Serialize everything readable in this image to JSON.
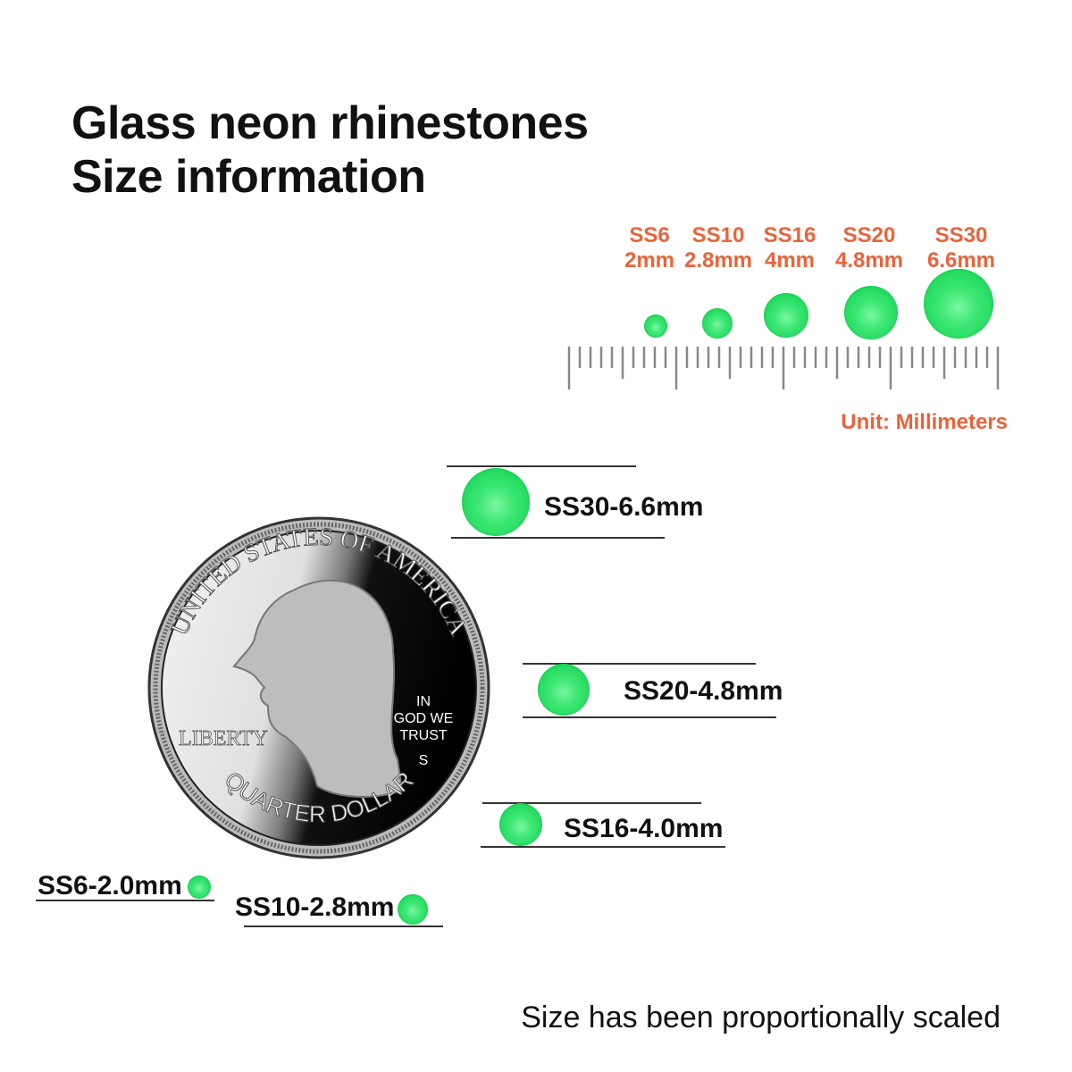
{
  "title": {
    "line1": "Glass neon rhinestones",
    "line2": "Size information"
  },
  "size_chart": {
    "items": [
      {
        "code": "SS6",
        "size": "2mm"
      },
      {
        "code": "SS10",
        "size": "2.8mm"
      },
      {
        "code": "SS16",
        "size": "4mm"
      },
      {
        "code": "SS20",
        "size": "4.8mm"
      },
      {
        "code": "SS30",
        "size": "6.6mm"
      }
    ],
    "unit": "Unit: Millimeters",
    "ruler_mm": 40
  },
  "comparison": {
    "labels": {
      "ss30": "SS30-6.6mm",
      "ss20": "SS20-4.8mm",
      "ss16": "SS16-4.0mm",
      "ss6": "SS6-2.0mm",
      "ss10": "SS10-2.8mm"
    },
    "coin": {
      "top": "UNITED STATES OF AMERICA",
      "motto": [
        "IN",
        "GOD WE",
        "TRUST"
      ],
      "left": "LIBERTY",
      "bottom": "QUARTER DOLLAR",
      "mint": "S"
    }
  },
  "footer": "Size has been proportionally scaled",
  "colors": {
    "accent": "#e8643c",
    "gem": "#1ed95a"
  }
}
